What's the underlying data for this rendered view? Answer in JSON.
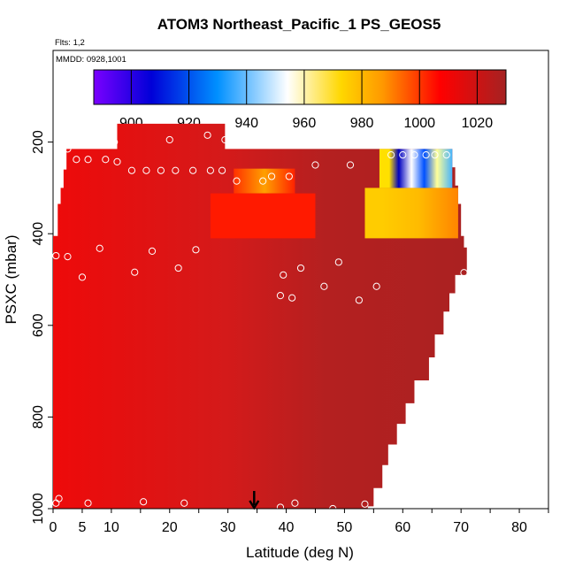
{
  "chart_data": {
    "type": "heatmap",
    "title": "ATOM3 Northeast_Pacific_1 PS_GEOS5",
    "subtitle_flights": "Flts: 1,2",
    "subtitle_dates": "MMDD: 0928,1001",
    "xlabel": "Latitude (deg N)",
    "ylabel": "PSXC (mbar)",
    "xlim": [
      0,
      85
    ],
    "ylim": [
      1000,
      0
    ],
    "x_ticks": [
      0,
      5,
      10,
      20,
      30,
      40,
      50,
      60,
      70,
      80
    ],
    "y_ticks": [
      200,
      400,
      600,
      800,
      1000
    ],
    "colorbar": {
      "range": [
        887,
        1030
      ],
      "ticks": [
        900,
        920,
        940,
        960,
        980,
        1000,
        1020
      ],
      "colors": [
        "#7a00ff",
        "#0000d8",
        "#0090ff",
        "#ffffff",
        "#ffd700",
        "#ff9900",
        "#ff0000",
        "#a52222"
      ]
    },
    "marker_latitude": 34.5,
    "field_value_at_low_latitude": 1015,
    "field_value_at_high_latitude": 1025,
    "upper_edge_profile": [
      {
        "lat": 11,
        "p": 165
      },
      {
        "lat": 30,
        "p": 215
      },
      {
        "lat": 69,
        "p": 215
      },
      {
        "lat": 70.5,
        "p": 405
      },
      {
        "lat": 71,
        "p": 490
      },
      {
        "lat": 69,
        "p": 660
      },
      {
        "lat": 54,
        "p": 995
      }
    ],
    "anomaly_bands": [
      {
        "lat_range": [
          31,
          39
        ],
        "p_range": [
          265,
          410
        ],
        "note": "lower values"
      },
      {
        "lat_range": [
          52,
          70
        ],
        "p_range": [
          215,
          410
        ],
        "note": "low values"
      }
    ],
    "observations": [
      {
        "lat": 0.5,
        "p": 448
      },
      {
        "lat": 0.5,
        "p": 988
      },
      {
        "lat": 1,
        "p": 978
      },
      {
        "lat": 2.5,
        "p": 450
      },
      {
        "lat": 2.5,
        "p": 215
      },
      {
        "lat": 4,
        "p": 238
      },
      {
        "lat": 5,
        "p": 495
      },
      {
        "lat": 6,
        "p": 238
      },
      {
        "lat": 6,
        "p": 988
      },
      {
        "lat": 8,
        "p": 432
      },
      {
        "lat": 9,
        "p": 238
      },
      {
        "lat": 10.5,
        "p": 200
      },
      {
        "lat": 11,
        "p": 243
      },
      {
        "lat": 13.5,
        "p": 262
      },
      {
        "lat": 14,
        "p": 484
      },
      {
        "lat": 15.5,
        "p": 985
      },
      {
        "lat": 16,
        "p": 262
      },
      {
        "lat": 17,
        "p": 438
      },
      {
        "lat": 18.5,
        "p": 262
      },
      {
        "lat": 20,
        "p": 195
      },
      {
        "lat": 21,
        "p": 262
      },
      {
        "lat": 21.5,
        "p": 475
      },
      {
        "lat": 22.5,
        "p": 988
      },
      {
        "lat": 24,
        "p": 262
      },
      {
        "lat": 24.5,
        "p": 435
      },
      {
        "lat": 26.5,
        "p": 185
      },
      {
        "lat": 27,
        "p": 262
      },
      {
        "lat": 29,
        "p": 262
      },
      {
        "lat": 29.5,
        "p": 195
      },
      {
        "lat": 31.5,
        "p": 285
      },
      {
        "lat": 36,
        "p": 285
      },
      {
        "lat": 37.5,
        "p": 275
      },
      {
        "lat": 39,
        "p": 535
      },
      {
        "lat": 39,
        "p": 997
      },
      {
        "lat": 39.5,
        "p": 490
      },
      {
        "lat": 40.5,
        "p": 275
      },
      {
        "lat": 41,
        "p": 540
      },
      {
        "lat": 41.5,
        "p": 988
      },
      {
        "lat": 42.5,
        "p": 475
      },
      {
        "lat": 45,
        "p": 250
      },
      {
        "lat": 46.5,
        "p": 515
      },
      {
        "lat": 48,
        "p": 1000
      },
      {
        "lat": 49,
        "p": 462
      },
      {
        "lat": 51,
        "p": 250
      },
      {
        "lat": 52.5,
        "p": 545
      },
      {
        "lat": 53.5,
        "p": 990
      },
      {
        "lat": 55.5,
        "p": 515
      },
      {
        "lat": 58,
        "p": 228
      },
      {
        "lat": 60,
        "p": 228
      },
      {
        "lat": 62,
        "p": 228
      },
      {
        "lat": 64,
        "p": 228
      },
      {
        "lat": 65.5,
        "p": 228
      },
      {
        "lat": 67.5,
        "p": 228
      },
      {
        "lat": 70.5,
        "p": 485
      }
    ]
  }
}
